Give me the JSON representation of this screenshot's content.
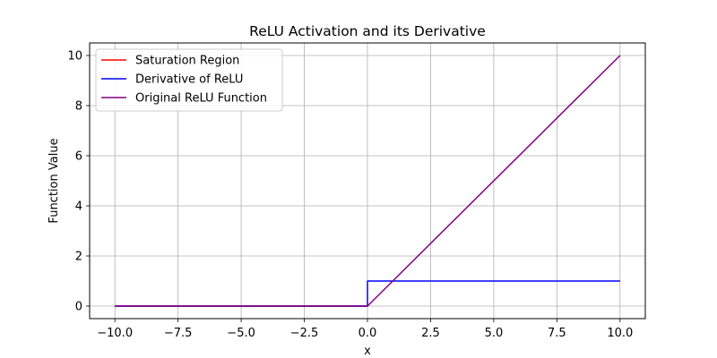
{
  "chart_data": {
    "type": "line",
    "title": "ReLU Activation and its Derivative",
    "xlabel": "x",
    "ylabel": "Function Value",
    "xlim": [
      -11.0,
      11.0
    ],
    "ylim": [
      -0.5,
      10.5
    ],
    "grid": true,
    "legend_position": "top-left",
    "xticks": [
      -10.0,
      -7.5,
      -5.0,
      -2.5,
      0.0,
      2.5,
      5.0,
      7.5,
      10.0
    ],
    "xtick_labels": [
      "−10.0",
      "−7.5",
      "−5.0",
      "−2.5",
      "0.0",
      "2.5",
      "5.0",
      "7.5",
      "10.0"
    ],
    "yticks": [
      0,
      2,
      4,
      6,
      8,
      10
    ],
    "ytick_labels": [
      "0",
      "2",
      "4",
      "6",
      "8",
      "10"
    ],
    "series": [
      {
        "name": "Saturation Region",
        "color": "#ff0000",
        "points": [
          [
            -10,
            0
          ],
          [
            0,
            0
          ]
        ]
      },
      {
        "name": "Derivative of ReLU",
        "color": "#0000ff",
        "points": [
          [
            -10,
            0
          ],
          [
            0,
            0
          ],
          [
            0,
            1
          ],
          [
            10,
            1
          ]
        ]
      },
      {
        "name": "Original ReLU Function",
        "color": "#800080",
        "points": [
          [
            -10,
            0
          ],
          [
            0,
            0
          ],
          [
            10,
            10
          ]
        ]
      }
    ]
  }
}
